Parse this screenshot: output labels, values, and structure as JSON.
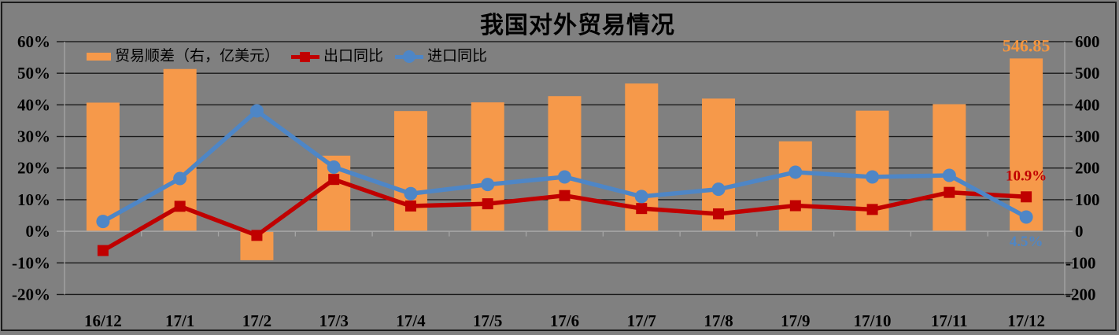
{
  "title": "我国对外贸易情况",
  "legend": {
    "items": [
      {
        "label": "贸易顺差（右，亿美元）",
        "swatch": "bar",
        "color": "#F6994A"
      },
      {
        "label": "出口同比",
        "swatch": "line-square",
        "color": "#C00000"
      },
      {
        "label": "进口同比",
        "swatch": "line-circle",
        "color": "#4E86C6"
      }
    ]
  },
  "chart_data": {
    "type": "combo",
    "title": "我国对外贸易情况",
    "categories": [
      "16/12",
      "17/1",
      "17/2",
      "17/3",
      "17/4",
      "17/5",
      "17/6",
      "17/7",
      "17/8",
      "17/9",
      "17/10",
      "17/11",
      "17/12"
    ],
    "series": [
      {
        "name": "贸易顺差（右，亿美元）",
        "type": "bar",
        "axis": "right",
        "unit": "亿美元",
        "color": "#F6994A",
        "values": [
          407.1,
          513.5,
          -91.5,
          239.3,
          380.5,
          407.9,
          427.7,
          467.5,
          419.9,
          284.7,
          381.7,
          402.1,
          546.85
        ]
      },
      {
        "name": "出口同比",
        "type": "line",
        "marker": "square",
        "axis": "left",
        "unit": "%",
        "color": "#C00000",
        "values": [
          -6.1,
          7.9,
          -1.3,
          16.4,
          8.0,
          8.7,
          11.3,
          7.2,
          5.5,
          8.1,
          6.9,
          12.3,
          10.9
        ]
      },
      {
        "name": "进口同比",
        "type": "line",
        "marker": "circle",
        "axis": "left",
        "unit": "%",
        "color": "#4E86C6",
        "values": [
          3.1,
          16.7,
          38.1,
          20.3,
          11.9,
          14.8,
          17.2,
          11.0,
          13.3,
          18.7,
          17.2,
          17.7,
          4.5
        ]
      }
    ],
    "left_axis": {
      "min": -20,
      "max": 60,
      "step": 10,
      "format": "percent",
      "tick_labels": [
        "60%",
        "50%",
        "40%",
        "30%",
        "20%",
        "10%",
        "0%",
        "-10%",
        "-20%"
      ]
    },
    "right_axis": {
      "min": -200,
      "max": 600,
      "step": 100,
      "tick_labels": [
        "600",
        "500",
        "400",
        "300",
        "200",
        "100",
        "0",
        "-100",
        "-200"
      ]
    },
    "annotations": [
      {
        "text": "546.85",
        "series": "贸易顺差（右，亿美元）",
        "category": "17/12",
        "color": "#F5963F",
        "placement": "above-bar"
      },
      {
        "text": "10.9%",
        "series": "出口同比",
        "category": "17/12",
        "color": "#C00000",
        "placement": "above-point"
      },
      {
        "text": "4.5%",
        "series": "进口同比",
        "category": "17/12",
        "color": "#4E86C6",
        "placement": "below-point"
      }
    ],
    "grid": true,
    "legend_position": "top-left"
  },
  "colors": {
    "background": "#808080",
    "gridline": "#1a1a1a",
    "axis_line": "#a6a6a6",
    "border": "#1b1b1b",
    "text": "#000000"
  }
}
